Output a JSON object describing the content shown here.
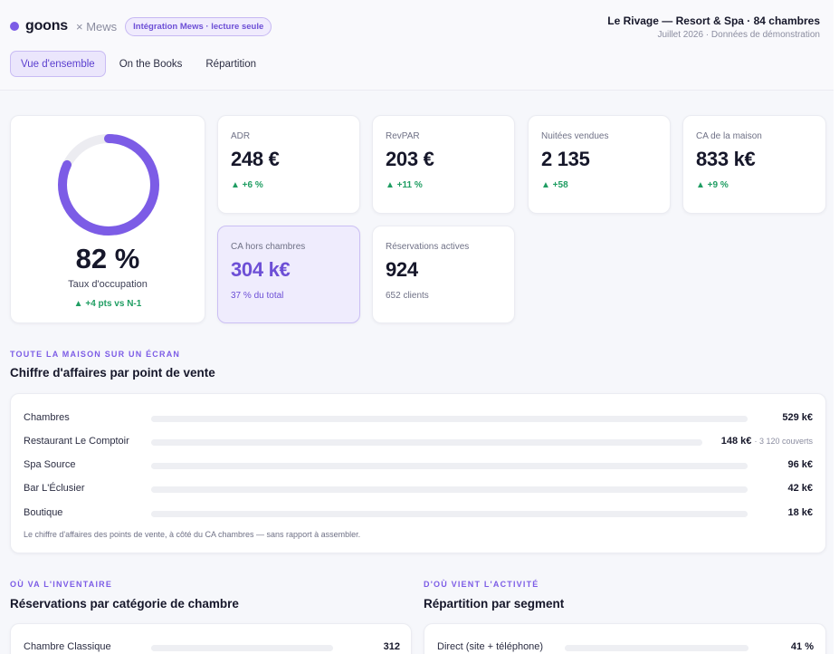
{
  "header": {
    "brand": "goons",
    "partner": "× Mews",
    "mode_badge": "Intégration Mews · lecture seule",
    "property_name": "Le Rivage — Resort & Spa · 84 chambres",
    "property_sub": "Juillet 2026 · Données de démonstration"
  },
  "tabs": [
    {
      "label": "Vue d'ensemble",
      "active": true
    },
    {
      "label": "On the Books",
      "active": false
    },
    {
      "label": "Répartition",
      "active": false
    }
  ],
  "occupancy": {
    "value": "82 %",
    "fraction": 0.82,
    "label": "Taux d'occupation",
    "delta": "▲ +4 pts vs N-1"
  },
  "kpis": {
    "adr": {
      "label": "ADR",
      "value": "248 €",
      "delta": "▲ +6 %"
    },
    "revpar": {
      "label": "RevPAR",
      "value": "203 €",
      "delta": "▲ +11 %"
    },
    "nights": {
      "label": "Nuitées vendues",
      "value": "2 135",
      "delta": "▲ +58"
    },
    "house_revenue": {
      "label": "CA de la maison",
      "value": "833 k€",
      "delta": "▲ +9 %"
    },
    "non_room": {
      "label": "CA hors chambres",
      "value": "304 k€",
      "sub": "37 % du total"
    },
    "active_bookings": {
      "label": "Réservations actives",
      "value": "924",
      "sub": "652 clients"
    }
  },
  "revenue_section": {
    "eyebrow": "TOUTE LA MAISON SUR UN ÉCRAN",
    "title": "Chiffre d'affaires par point de vente",
    "rows": [
      {
        "label": "Chambres",
        "value": "529 k€",
        "note": ""
      },
      {
        "label": "Restaurant Le Comptoir",
        "value": "148 k€",
        "note": "· 3 120 couverts"
      },
      {
        "label": "Spa Source",
        "value": "96 k€",
        "note": ""
      },
      {
        "label": "Bar L'Éclusier",
        "value": "42 k€",
        "note": ""
      },
      {
        "label": "Boutique",
        "value": "18 k€",
        "note": ""
      }
    ],
    "footnote": "Le chiffre d'affaires des points de vente, à côté du CA chambres — sans rapport à assembler."
  },
  "inventory_section": {
    "eyebrow": "OÙ VA L'INVENTAIRE",
    "title": "Réservations par catégorie de chambre",
    "rows": [
      {
        "label": "Chambre Classique",
        "value": "312"
      }
    ]
  },
  "segment_section": {
    "eyebrow": "D'OÙ VIENT L'ACTIVITÉ",
    "title": "Répartition par segment",
    "rows": [
      {
        "label": "Direct (site + téléphone)",
        "value": "41 %"
      }
    ]
  },
  "colors": {
    "accent": "#7c5ce6",
    "positive": "#1f9d62",
    "track": "#eeeff3"
  }
}
